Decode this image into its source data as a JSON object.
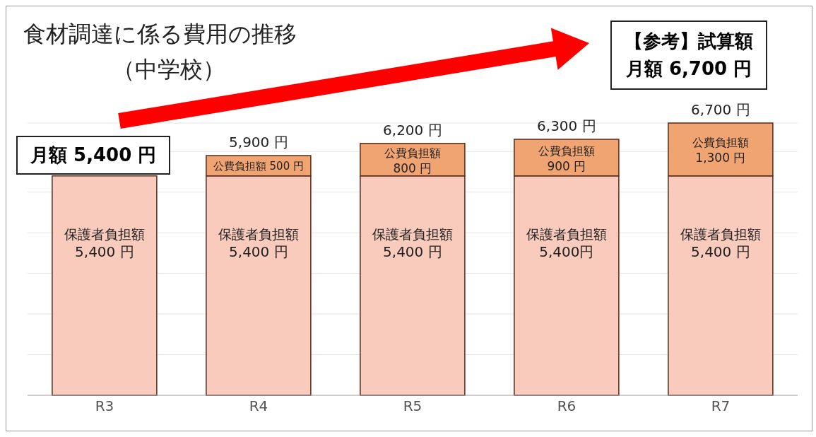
{
  "chart_data": {
    "type": "bar",
    "title": "食材調達に係る費用の推移",
    "subtitle": "（中学校）",
    "categories": [
      "R3",
      "R4",
      "R5",
      "R6",
      "R7"
    ],
    "stacked": true,
    "grid": true,
    "series": [
      {
        "name": "保護者負担額",
        "color": "#f8cbbd",
        "values": [
          5400,
          5400,
          5400,
          5400,
          5400
        ],
        "value_labels": [
          "5,400 円",
          "5,400 円",
          "5,400 円",
          "5,400円",
          "5,400 円"
        ]
      },
      {
        "name": "公費負担額",
        "color": "#f0a472",
        "values": [
          null,
          500,
          800,
          900,
          1300
        ],
        "value_labels": [
          null,
          "500 円",
          "800 円",
          "900 円",
          "1,300 円"
        ]
      }
    ],
    "totals": [
      null,
      "5,900 円",
      "6,200 円",
      "6,300 円",
      "6,700 円"
    ],
    "annotations": [
      "月額 5,400 円",
      "【参考】試算額",
      "月額 6,700 円"
    ]
  }
}
